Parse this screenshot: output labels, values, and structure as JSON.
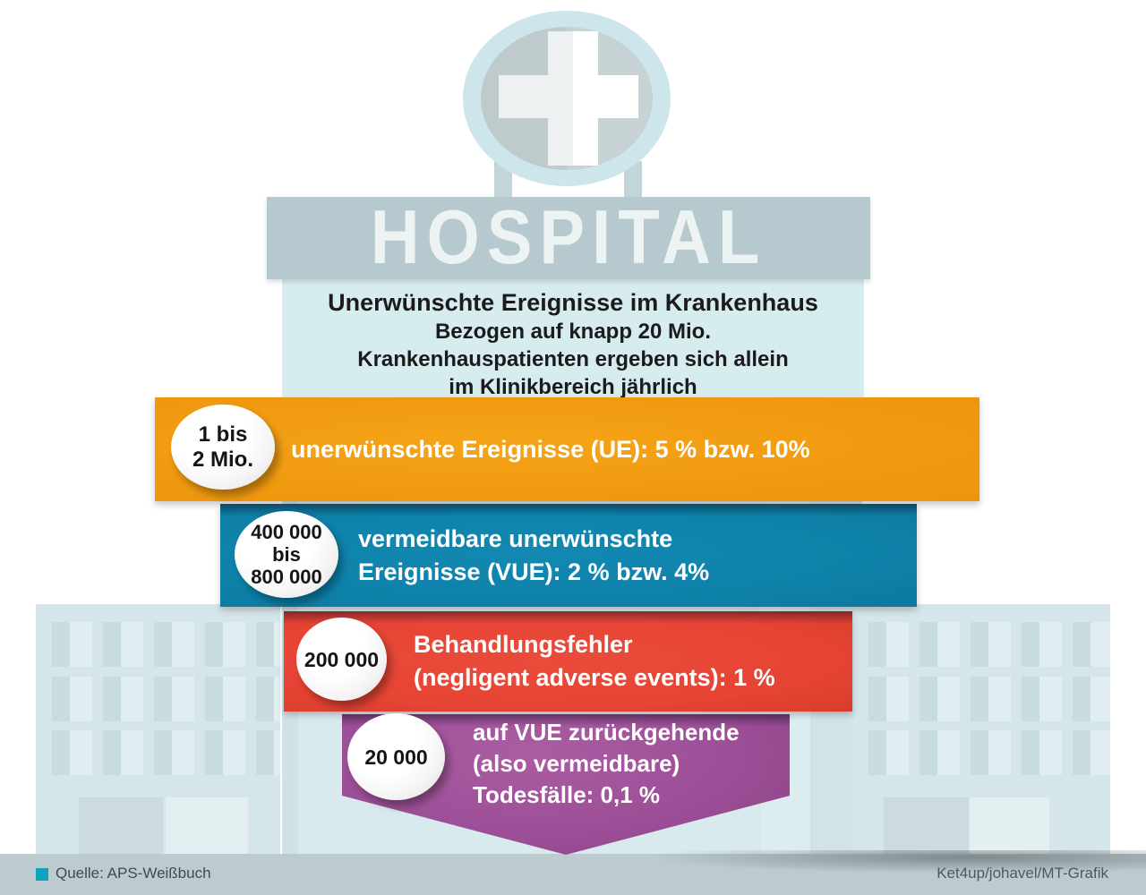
{
  "sign": {
    "text": "HOSPITAL"
  },
  "title": {
    "heading": "Unerwünschte Ereignisse im Krankenhaus",
    "subtitle_lines": [
      "Bezogen auf knapp 20 Mio.",
      "Krankenhauspatienten ergeben sich allein",
      "im Klinikbereich jährlich"
    ]
  },
  "chart_data": {
    "type": "bar",
    "variant": "funnel-infographic",
    "title": "Unerwünschte Ereignisse im Krankenhaus",
    "subtitle": "Bezogen auf knapp 20 Mio. Krankenhauspatienten ergeben sich allein im Klinikbereich jährlich",
    "categories": [
      "unerwünschte Ereignisse (UE): 5 % bzw. 10%",
      "vermeidbare unerwünschte Ereignisse (VUE): 2 % bzw. 4%",
      "Behandlungsfehler (negligent adverse events): 1 %",
      "auf VUE zurückgehende (also vermeidbare) Todesfälle: 0,1 %"
    ],
    "value_labels": [
      "1 bis 2 Mio.",
      "400 000 bis 800 000",
      "200 000",
      "20 000"
    ],
    "values_min": [
      1000000,
      400000,
      200000,
      20000
    ],
    "values_max": [
      2000000,
      800000,
      200000,
      20000
    ],
    "colors": [
      "#f0990f",
      "#0e80a8",
      "#e64434",
      "#9c4f96"
    ],
    "legend": false,
    "grid": false
  },
  "funnel": {
    "bars": [
      {
        "color": "#f0990f",
        "badge_lines": [
          "1 bis",
          "2 Mio."
        ],
        "label_lines": [
          "unerwünschte Ereignisse (UE): 5 % bzw. 10%"
        ]
      },
      {
        "color": "#0e80a8",
        "badge_lines": [
          "400 000",
          "bis",
          "800 000"
        ],
        "label_lines": [
          "vermeidbare unerwünschte",
          "Ereignisse (VUE): 2 % bzw. 4%"
        ]
      },
      {
        "color": "#e64434",
        "badge_lines": [
          "200 000"
        ],
        "label_lines": [
          "Behandlungsfehler",
          "(negligent adverse events): 1 %"
        ]
      },
      {
        "color": "#9c4f96",
        "badge_lines": [
          "20 000"
        ],
        "label_lines": [
          "auf VUE zurückgehende",
          "(also vermeidbare)",
          "Todesfälle: 0,1 %"
        ]
      }
    ]
  },
  "footer": {
    "source": "Quelle: APS-Weißbuch",
    "credit": "Ket4up/johavel/MT-Grafik",
    "accent_color": "#12a3bc"
  }
}
